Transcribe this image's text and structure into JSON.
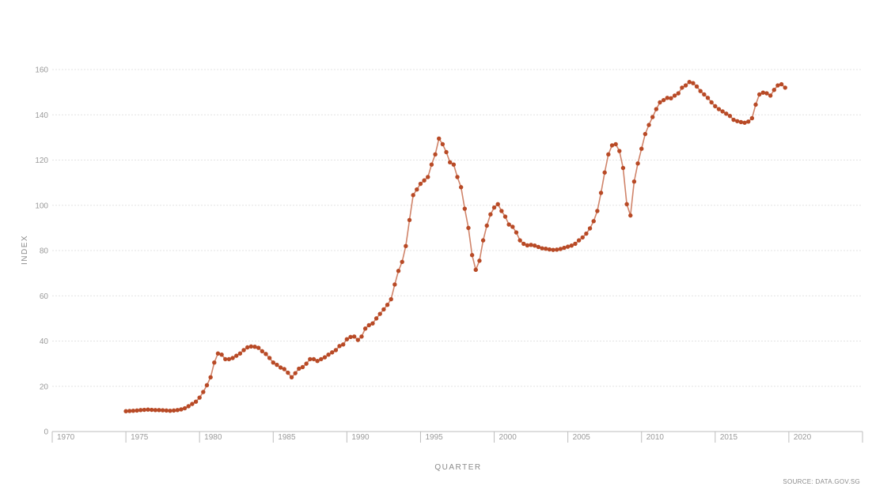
{
  "chart_data": {
    "type": "line",
    "title": "",
    "xlabel": "QUARTER",
    "ylabel": "INDEX",
    "source": "SOURCE: DATA.GOV.SG",
    "xlim": [
      1970,
      2025
    ],
    "ylim": [
      0,
      160
    ],
    "x_ticks": [
      1970,
      1975,
      1980,
      1985,
      1990,
      1995,
      2000,
      2005,
      2010,
      2015,
      2020
    ],
    "y_ticks": [
      0,
      20,
      40,
      60,
      80,
      100,
      120,
      140,
      160
    ],
    "grid": true,
    "legend": "none",
    "colors": {
      "line": "#d0846a",
      "marker": "#b84a26"
    },
    "x": [
      1975.0,
      1975.25,
      1975.5,
      1975.75,
      1976.0,
      1976.25,
      1976.5,
      1976.75,
      1977.0,
      1977.25,
      1977.5,
      1977.75,
      1978.0,
      1978.25,
      1978.5,
      1978.75,
      1979.0,
      1979.25,
      1979.5,
      1979.75,
      1980.0,
      1980.25,
      1980.5,
      1980.75,
      1981.0,
      1981.25,
      1981.5,
      1981.75,
      1982.0,
      1982.25,
      1982.5,
      1982.75,
      1983.0,
      1983.25,
      1983.5,
      1983.75,
      1984.0,
      1984.25,
      1984.5,
      1984.75,
      1985.0,
      1985.25,
      1985.5,
      1985.75,
      1986.0,
      1986.25,
      1986.5,
      1986.75,
      1987.0,
      1987.25,
      1987.5,
      1987.75,
      1988.0,
      1988.25,
      1988.5,
      1988.75,
      1989.0,
      1989.25,
      1989.5,
      1989.75,
      1990.0,
      1990.25,
      1990.5,
      1990.75,
      1991.0,
      1991.25,
      1991.5,
      1991.75,
      1992.0,
      1992.25,
      1992.5,
      1992.75,
      1993.0,
      1993.25,
      1993.5,
      1993.75,
      1994.0,
      1994.25,
      1994.5,
      1994.75,
      1995.0,
      1995.25,
      1995.5,
      1995.75,
      1996.0,
      1996.25,
      1996.5,
      1996.75,
      1997.0,
      1997.25,
      1997.5,
      1997.75,
      1998.0,
      1998.25,
      1998.5,
      1998.75,
      1999.0,
      1999.25,
      1999.5,
      1999.75,
      2000.0,
      2000.25,
      2000.5,
      2000.75,
      2001.0,
      2001.25,
      2001.5,
      2001.75,
      2002.0,
      2002.25,
      2002.5,
      2002.75,
      2003.0,
      2003.25,
      2003.5,
      2003.75,
      2004.0,
      2004.25,
      2004.5,
      2004.75,
      2005.0,
      2005.25,
      2005.5,
      2005.75,
      2006.0,
      2006.25,
      2006.5,
      2006.75,
      2007.0,
      2007.25,
      2007.5,
      2007.75,
      2008.0,
      2008.25,
      2008.5,
      2008.75,
      2009.0,
      2009.25,
      2009.5,
      2009.75,
      2010.0,
      2010.25,
      2010.5,
      2010.75,
      2011.0,
      2011.25,
      2011.5,
      2011.75,
      2012.0,
      2012.25,
      2012.5,
      2012.75,
      2013.0,
      2013.25,
      2013.5,
      2013.75,
      2014.0,
      2014.25,
      2014.5,
      2014.75,
      2015.0,
      2015.25,
      2015.5,
      2015.75,
      2016.0,
      2016.25,
      2016.5,
      2016.75,
      2017.0,
      2017.25,
      2017.5,
      2017.75,
      2018.0,
      2018.25,
      2018.5,
      2018.75,
      2019.0,
      2019.25,
      2019.5,
      2019.75
    ],
    "values": [
      9.0,
      9.1,
      9.2,
      9.3,
      9.5,
      9.6,
      9.7,
      9.6,
      9.5,
      9.5,
      9.4,
      9.3,
      9.2,
      9.3,
      9.5,
      9.8,
      10.3,
      11.2,
      12.2,
      13.2,
      15.0,
      17.5,
      20.5,
      24.0,
      30.5,
      34.5,
      34.0,
      32.0,
      32.0,
      32.5,
      33.5,
      34.5,
      36.0,
      37.2,
      37.6,
      37.5,
      37.0,
      35.5,
      34.3,
      32.5,
      30.5,
      29.5,
      28.3,
      27.6,
      26.0,
      24.0,
      25.8,
      27.8,
      28.5,
      30.0,
      32.0,
      32.0,
      31.2,
      32.0,
      32.8,
      34.0,
      35.0,
      36.0,
      37.8,
      38.5,
      40.8,
      41.8,
      42.0,
      40.5,
      42.0,
      45.5,
      47.0,
      47.8,
      50.0,
      52.0,
      54.0,
      56.0,
      58.5,
      65.0,
      71.0,
      75.0,
      82.0,
      93.5,
      104.5,
      107.0,
      109.5,
      111.0,
      112.5,
      118.0,
      122.5,
      129.5,
      127.0,
      123.5,
      119.0,
      118.0,
      112.5,
      108.0,
      98.5,
      90.0,
      78.0,
      71.5,
      75.5,
      84.5,
      91.0,
      96.0,
      99.0,
      100.5,
      97.5,
      95.0,
      91.5,
      90.5,
      88.0,
      84.5,
      83.0,
      82.3,
      82.5,
      82.2,
      81.6,
      81.0,
      80.8,
      80.5,
      80.3,
      80.4,
      80.7,
      81.2,
      81.7,
      82.2,
      83.0,
      84.5,
      85.8,
      87.5,
      89.8,
      93.0,
      97.5,
      105.5,
      114.5,
      122.5,
      126.5,
      127.0,
      124.0,
      116.5,
      100.5,
      95.5,
      110.5,
      118.5,
      125.0,
      131.5,
      135.5,
      139.0,
      142.5,
      145.5,
      146.5,
      147.5,
      147.3,
      148.5,
      149.5,
      152.0,
      153.0,
      154.5,
      154.0,
      152.5,
      150.5,
      149.0,
      147.5,
      145.5,
      143.8,
      142.5,
      141.5,
      140.5,
      139.5,
      137.8,
      137.2,
      136.8,
      136.5,
      137.0,
      138.5,
      144.5,
      149.0,
      149.8,
      149.5,
      148.5,
      151.0,
      153.0,
      153.5,
      152.0
    ]
  }
}
